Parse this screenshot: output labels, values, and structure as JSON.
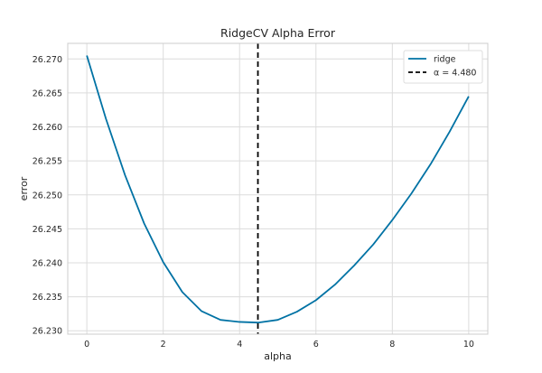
{
  "chart_data": {
    "type": "line",
    "title": "RidgeCV Alpha Error",
    "xlabel": "alpha",
    "ylabel": "error",
    "xlim": [
      -0.5,
      10.5
    ],
    "ylim": [
      26.2295,
      26.2723
    ],
    "xticks": [
      0,
      2,
      4,
      6,
      8,
      10
    ],
    "xtick_labels": [
      "0",
      "2",
      "4",
      "6",
      "8",
      "10"
    ],
    "yticks": [
      26.23,
      26.235,
      26.24,
      26.245,
      26.25,
      26.255,
      26.26,
      26.265,
      26.27
    ],
    "ytick_labels": [
      "26.230",
      "26.235",
      "26.240",
      "26.245",
      "26.250",
      "26.255",
      "26.260",
      "26.265",
      "26.270"
    ],
    "grid": true,
    "legend_position": "top-right",
    "series": [
      {
        "name": "ridge",
        "color": "#0072a4",
        "x": [
          0,
          0.5,
          1,
          1.5,
          2,
          2.5,
          3,
          3.5,
          4,
          4.48,
          5,
          5.5,
          6,
          6.5,
          7,
          7.5,
          8,
          8.5,
          9,
          9.5,
          10
        ],
        "y": [
          26.2705,
          26.2612,
          26.2529,
          26.2458,
          26.2401,
          26.2357,
          26.2329,
          26.2316,
          26.2313,
          26.2312,
          26.2316,
          26.2328,
          26.2345,
          26.2368,
          26.2396,
          26.2427,
          26.2463,
          26.2502,
          26.2545,
          26.2593,
          26.2645
        ]
      }
    ],
    "vline": {
      "x": 4.48,
      "label": "α = 4.480",
      "color": "#000000",
      "style": "dashed"
    }
  }
}
